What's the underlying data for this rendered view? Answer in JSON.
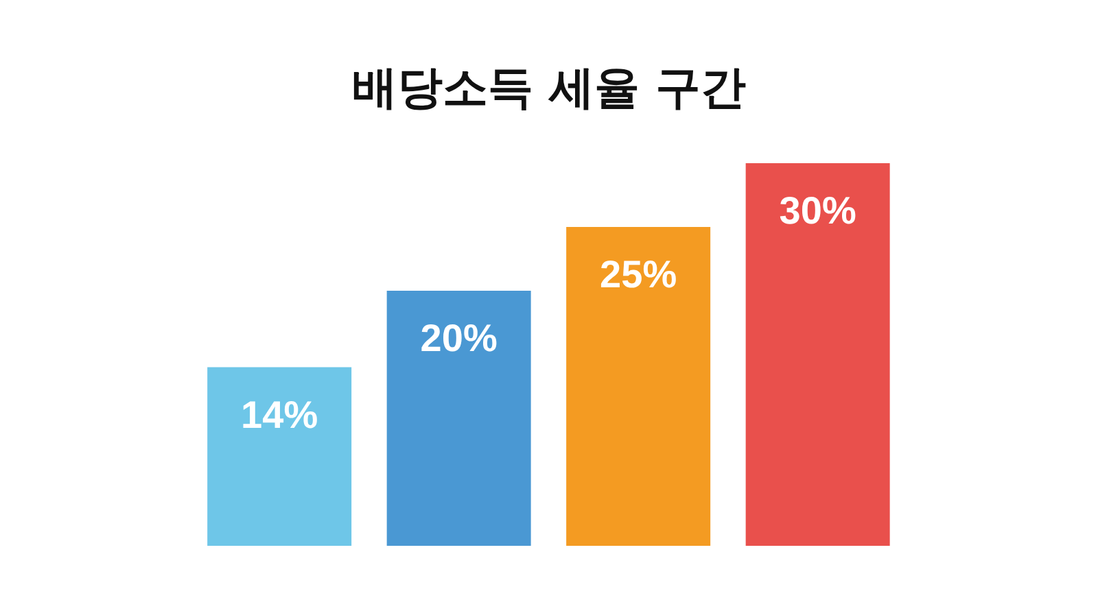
{
  "chart_data": {
    "type": "bar",
    "title": "배당소득 세율 구간",
    "categories": [
      null,
      null,
      null,
      null
    ],
    "values": [
      14,
      20,
      25,
      30
    ],
    "value_labels": [
      "14%",
      "20%",
      "25%",
      "30%"
    ],
    "colors": [
      "#6ec6e8",
      "#4a98d3",
      "#f49b22",
      "#e9504c"
    ]
  }
}
